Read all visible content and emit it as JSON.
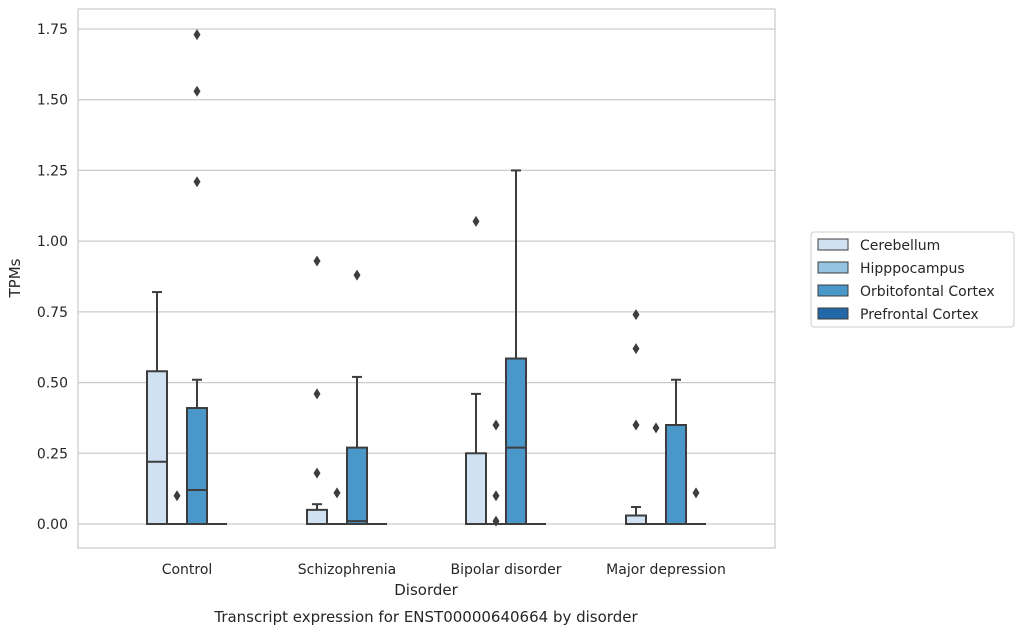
{
  "chart_data": {
    "type": "box",
    "title": "",
    "caption": "Transcript expression for ENST00000640664 by disorder",
    "xlabel": "Disorder",
    "ylabel": "TPMs",
    "ylim": [
      -0.08,
      1.82
    ],
    "yticks": [
      "0.00",
      "0.25",
      "0.50",
      "0.75",
      "1.00",
      "1.25",
      "1.50",
      "1.75"
    ],
    "ytick_values": [
      0,
      0.25,
      0.5,
      0.75,
      1.0,
      1.25,
      1.5,
      1.75
    ],
    "grid": true,
    "legend_position": "right",
    "categories": [
      "Control",
      "Schizophrenia",
      "Bipolar disorder",
      "Major depression"
    ],
    "series": [
      {
        "name": "Cerebellum",
        "color": "#d0e1f2",
        "boxes": [
          {
            "min": 0,
            "q1": 0,
            "median": 0.22,
            "q3": 0.54,
            "max": 0.82,
            "outliers": []
          },
          {
            "min": 0,
            "q1": 0,
            "median": 0,
            "q3": 0.05,
            "max": 0.07,
            "outliers": [
              0.93,
              0.46,
              0.18
            ]
          },
          {
            "min": 0,
            "q1": 0,
            "median": 0,
            "q3": 0.25,
            "max": 0.46,
            "outliers": [
              1.07
            ]
          },
          {
            "min": 0,
            "q1": 0,
            "median": 0,
            "q3": 0.03,
            "max": 0.06,
            "outliers": [
              0.74,
              0.62,
              0.35
            ]
          }
        ]
      },
      {
        "name": "Hipppocampus",
        "color": "#94c4df",
        "boxes": [
          {
            "min": 0,
            "q1": 0,
            "median": 0,
            "q3": 0,
            "max": 0,
            "outliers": [
              0.1
            ]
          },
          {
            "min": 0,
            "q1": 0,
            "median": 0,
            "q3": 0,
            "max": 0,
            "outliers": [
              0.11
            ]
          },
          {
            "min": 0,
            "q1": 0,
            "median": 0,
            "q3": 0,
            "max": 0,
            "outliers": [
              0.35,
              0.1,
              0.01
            ]
          },
          {
            "min": 0,
            "q1": 0,
            "median": 0,
            "q3": 0,
            "max": 0,
            "outliers": [
              0.34
            ]
          }
        ]
      },
      {
        "name": "Orbitofontal Cortex",
        "color": "#4a98c9",
        "boxes": [
          {
            "min": 0,
            "q1": 0,
            "median": 0.12,
            "q3": 0.41,
            "max": 0.51,
            "outliers": [
              1.73,
              1.53,
              1.21
            ]
          },
          {
            "min": 0,
            "q1": 0,
            "median": 0.01,
            "q3": 0.27,
            "max": 0.52,
            "outliers": [
              0.88
            ]
          },
          {
            "min": 0,
            "q1": 0,
            "median": 0.27,
            "q3": 0.585,
            "max": 1.25,
            "outliers": []
          },
          {
            "min": 0,
            "q1": 0,
            "median": 0,
            "q3": 0.35,
            "max": 0.51,
            "outliers": []
          }
        ]
      },
      {
        "name": "Prefrontal Cortex",
        "color": "#2268a8",
        "boxes": [
          {
            "min": 0,
            "q1": 0,
            "median": 0,
            "q3": 0,
            "max": 0,
            "outliers": []
          },
          {
            "min": 0,
            "q1": 0,
            "median": 0,
            "q3": 0,
            "max": 0,
            "outliers": []
          },
          {
            "min": 0,
            "q1": 0,
            "median": 0,
            "q3": 0,
            "max": 0,
            "outliers": []
          },
          {
            "min": 0,
            "q1": 0,
            "median": 0,
            "q3": 0,
            "max": 0,
            "outliers": [
              0.11
            ]
          }
        ]
      }
    ]
  }
}
